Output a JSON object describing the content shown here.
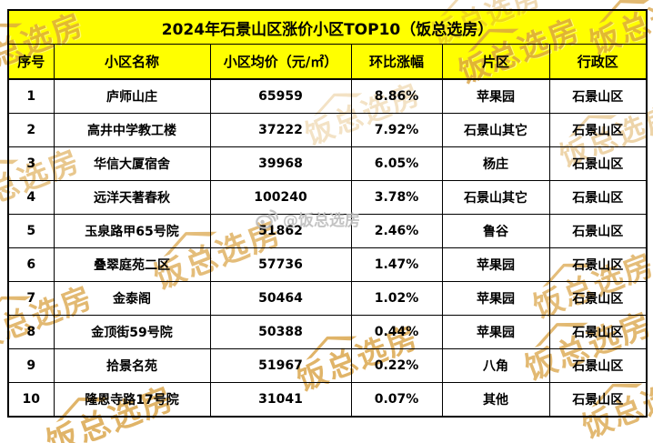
{
  "chart_data": {
    "type": "table",
    "title": "2024年石景山区涨价小区TOP10（饭总选房）",
    "columns": [
      "序号",
      "小区名称",
      "小区均价（元/㎡）",
      "环比涨幅",
      "片区",
      "行政区"
    ],
    "rows": [
      [
        "1",
        "庐师山庄",
        "65959",
        "8.86%",
        "苹果园",
        "石景山区"
      ],
      [
        "2",
        "高井中学教工楼",
        "37222",
        "7.92%",
        "石景山其它",
        "石景山区"
      ],
      [
        "3",
        "华信大厦宿舍",
        "39968",
        "6.05%",
        "杨庄",
        "石景山区"
      ],
      [
        "4",
        "远洋天著春秋",
        "100240",
        "3.78%",
        "石景山其它",
        "石景山区"
      ],
      [
        "5",
        "玉泉路甲65号院",
        "51862",
        "2.46%",
        "鲁谷",
        "石景山区"
      ],
      [
        "6",
        "叠翠庭苑二区",
        "57736",
        "1.47%",
        "苹果园",
        "石景山区"
      ],
      [
        "7",
        "金泰阁",
        "50464",
        "1.02%",
        "苹果园",
        "石景山区"
      ],
      [
        "8",
        "金顶街59号院",
        "50388",
        "0.44%",
        "苹果园",
        "石景山区"
      ],
      [
        "9",
        "拾景名苑",
        "51967",
        "0.22%",
        "八角",
        "石景山区"
      ],
      [
        "10",
        "隆恩寺路17号院",
        "31041",
        "0.07%",
        "其他",
        "石景山区"
      ]
    ]
  },
  "watermark": {
    "stamp_text": "饭总选房",
    "weibo_label": "@饭总选房",
    "stamp_color": "#D9A243",
    "weibo_color": "#BDBDBD"
  },
  "colors": {
    "header_bg": "#FFFF00",
    "border": "#000000",
    "row_bg": "#FFFFFF",
    "text": "#000000"
  }
}
